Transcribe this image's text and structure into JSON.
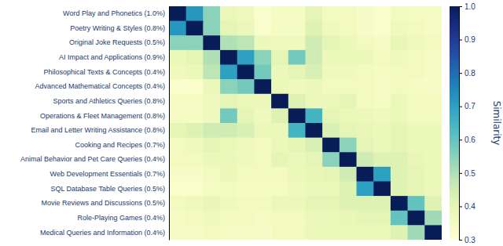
{
  "chart_data": {
    "type": "heatmap",
    "categories": [
      "Word Play and Phonetics (1.0%)",
      "Poetry Writing & Styles (0.8%)",
      "Original Joke Requests (0.5%)",
      "AI Impact and Applications (0.9%)",
      "Philosophical Texts & Concepts (0.4%)",
      "Advanced Mathematical Concepts (0.4%)",
      "Sports and Athletics Queries (0.8%)",
      "Operations & Fleet Management (0.8%)",
      "Email and Letter Writing Assistance (0.8%)",
      "Cooking and Recipes (0.7%)",
      "Animal Behavior and Pet Care Queries (0.4%)",
      "Web Development Essentials (0.7%)",
      "SQL Database Table Queries (0.5%)",
      "Movie Reviews and Discussions (0.5%)",
      "Role-Playing Games (0.4%)",
      "Medical Queries and Information (0.4%)"
    ],
    "values": [
      [
        1.0,
        0.72,
        0.55,
        0.38,
        0.37,
        0.33,
        0.35,
        0.35,
        0.4,
        0.36,
        0.36,
        0.34,
        0.33,
        0.36,
        0.35,
        0.35
      ],
      [
        0.72,
        1.0,
        0.55,
        0.4,
        0.38,
        0.33,
        0.35,
        0.35,
        0.42,
        0.37,
        0.36,
        0.34,
        0.33,
        0.37,
        0.36,
        0.35
      ],
      [
        0.55,
        0.55,
        1.0,
        0.5,
        0.48,
        0.38,
        0.37,
        0.37,
        0.45,
        0.4,
        0.38,
        0.36,
        0.35,
        0.39,
        0.37,
        0.36
      ],
      [
        0.38,
        0.4,
        0.5,
        1.0,
        0.7,
        0.55,
        0.4,
        0.58,
        0.45,
        0.38,
        0.38,
        0.38,
        0.36,
        0.37,
        0.36,
        0.35
      ],
      [
        0.37,
        0.38,
        0.48,
        0.7,
        1.0,
        0.58,
        0.38,
        0.4,
        0.43,
        0.37,
        0.37,
        0.36,
        0.35,
        0.36,
        0.36,
        0.35
      ],
      [
        0.33,
        0.33,
        0.38,
        0.55,
        0.58,
        1.0,
        0.38,
        0.37,
        0.38,
        0.36,
        0.36,
        0.36,
        0.35,
        0.36,
        0.35,
        0.34
      ],
      [
        0.35,
        0.35,
        0.37,
        0.4,
        0.38,
        0.38,
        1.0,
        0.42,
        0.38,
        0.38,
        0.4,
        0.36,
        0.35,
        0.38,
        0.36,
        0.36
      ],
      [
        0.35,
        0.35,
        0.37,
        0.58,
        0.4,
        0.37,
        0.42,
        1.0,
        0.65,
        0.4,
        0.38,
        0.38,
        0.37,
        0.38,
        0.36,
        0.36
      ],
      [
        0.4,
        0.42,
        0.45,
        0.45,
        0.43,
        0.38,
        0.38,
        0.65,
        1.0,
        0.43,
        0.4,
        0.39,
        0.38,
        0.4,
        0.38,
        0.38
      ],
      [
        0.36,
        0.37,
        0.4,
        0.38,
        0.37,
        0.36,
        0.38,
        0.4,
        0.43,
        1.0,
        0.55,
        0.4,
        0.38,
        0.4,
        0.38,
        0.38
      ],
      [
        0.36,
        0.36,
        0.38,
        0.38,
        0.37,
        0.36,
        0.4,
        0.38,
        0.4,
        0.55,
        1.0,
        0.45,
        0.42,
        0.42,
        0.39,
        0.38
      ],
      [
        0.34,
        0.34,
        0.36,
        0.38,
        0.36,
        0.36,
        0.36,
        0.38,
        0.39,
        0.4,
        0.45,
        1.0,
        0.7,
        0.42,
        0.4,
        0.38
      ],
      [
        0.33,
        0.33,
        0.35,
        0.36,
        0.35,
        0.35,
        0.35,
        0.37,
        0.38,
        0.38,
        0.42,
        0.7,
        1.0,
        0.42,
        0.4,
        0.38
      ],
      [
        0.36,
        0.37,
        0.39,
        0.37,
        0.36,
        0.36,
        0.38,
        0.38,
        0.4,
        0.4,
        0.42,
        0.42,
        0.42,
        1.0,
        0.6,
        0.42
      ],
      [
        0.35,
        0.36,
        0.37,
        0.36,
        0.36,
        0.35,
        0.36,
        0.36,
        0.38,
        0.38,
        0.39,
        0.4,
        0.4,
        0.6,
        1.0,
        0.52
      ],
      [
        0.35,
        0.35,
        0.36,
        0.35,
        0.35,
        0.34,
        0.36,
        0.36,
        0.38,
        0.38,
        0.38,
        0.38,
        0.38,
        0.42,
        0.52,
        1.0
      ]
    ],
    "color": "YlGnBu",
    "colorbar_label": "Similarity",
    "colorbar_range": [
      0.3,
      1.0
    ],
    "colorbar_ticks": [
      0.3,
      0.4,
      0.5,
      0.6,
      0.7,
      0.8,
      0.9,
      {
        "value": 1.0,
        "label": "1.0"
      }
    ],
    "tick_labels": "y"
  }
}
